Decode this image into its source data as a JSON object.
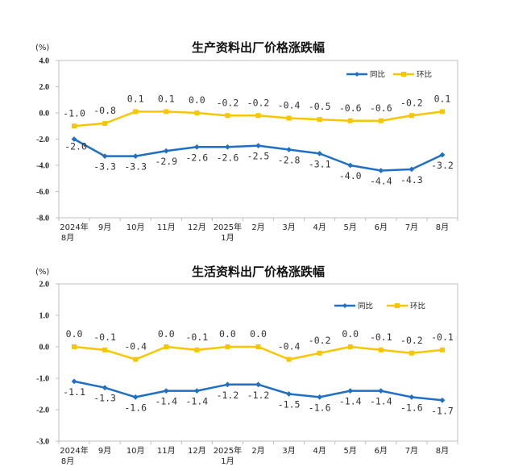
{
  "colors": {
    "yoy": "#1f6fc5",
    "mom": "#f7c600",
    "axis": "#bfbfbf"
  },
  "chart_data": [
    {
      "type": "line",
      "title": "生产资料出厂价格涨跌幅",
      "unit": "(%)",
      "ylim": [
        -8.0,
        4.0
      ],
      "yticks": [
        "4.0",
        "2.0",
        "0.0",
        "-2.0",
        "-4.0",
        "-6.0",
        "-8.0"
      ],
      "ytick_values": [
        4,
        2,
        0,
        -2,
        -4,
        -6,
        -8
      ],
      "categories": [
        [
          "2024年",
          "8月"
        ],
        [
          "9月"
        ],
        [
          "10月"
        ],
        [
          "11月"
        ],
        [
          "12月"
        ],
        [
          "2025年",
          "1月"
        ],
        [
          "2月"
        ],
        [
          "3月"
        ],
        [
          "4月"
        ],
        [
          "5月"
        ],
        [
          "6月"
        ],
        [
          "7月"
        ],
        [
          "8月"
        ]
      ],
      "legend_position": "top-right",
      "series": [
        {
          "name": "同比",
          "values": [
            -2.0,
            -3.3,
            -3.3,
            -2.9,
            -2.6,
            -2.6,
            -2.5,
            -2.8,
            -3.1,
            -4.0,
            -4.4,
            -4.3,
            -3.2
          ],
          "labels": [
            "-2.0",
            "-3.3",
            "-3.3",
            "-2.9",
            "-2.6",
            "-2.6",
            "-2.5",
            "-2.8",
            "-3.1",
            "-4.0",
            "-4.4",
            "-4.3",
            "-3.2"
          ]
        },
        {
          "name": "环比",
          "values": [
            -1.0,
            -0.8,
            0.1,
            0.1,
            0.0,
            -0.2,
            -0.2,
            -0.4,
            -0.5,
            -0.6,
            -0.6,
            -0.2,
            0.1
          ],
          "labels": [
            "-1.0",
            "-0.8",
            "0.1",
            "0.1",
            "0.0",
            "-0.2",
            "-0.2",
            "-0.4",
            "-0.5",
            "-0.6",
            "-0.6",
            "-0.2",
            "0.1"
          ]
        }
      ]
    },
    {
      "type": "line",
      "title": "生活资料出厂价格涨跌幅",
      "unit": "(%)",
      "ylim": [
        -3.0,
        2.0
      ],
      "yticks": [
        "2.0",
        "1.0",
        "0.0",
        "-1.0",
        "-2.0",
        "-3.0"
      ],
      "ytick_values": [
        2,
        1,
        0,
        -1,
        -2,
        -3
      ],
      "categories": [
        [
          "2024年",
          "8月"
        ],
        [
          "9月"
        ],
        [
          "10月"
        ],
        [
          "11月"
        ],
        [
          "12月"
        ],
        [
          "2025年",
          "1月"
        ],
        [
          "2月"
        ],
        [
          "3月"
        ],
        [
          "4月"
        ],
        [
          "5月"
        ],
        [
          "6月"
        ],
        [
          "7月"
        ],
        [
          "8月"
        ]
      ],
      "legend_position": "top-right",
      "series": [
        {
          "name": "同比",
          "values": [
            -1.1,
            -1.3,
            -1.6,
            -1.4,
            -1.4,
            -1.2,
            -1.2,
            -1.5,
            -1.6,
            -1.4,
            -1.4,
            -1.6,
            -1.7
          ],
          "labels": [
            "-1.1",
            "-1.3",
            "-1.6",
            "-1.4",
            "-1.4",
            "-1.2",
            "-1.2",
            "-1.5",
            "-1.6",
            "-1.4",
            "-1.4",
            "-1.6",
            "-1.7"
          ]
        },
        {
          "name": "环比",
          "values": [
            0.0,
            -0.1,
            -0.4,
            0.0,
            -0.1,
            0.0,
            0.0,
            -0.4,
            -0.2,
            0.0,
            -0.1,
            -0.2,
            -0.1
          ],
          "labels": [
            "0.0",
            "-0.1",
            "-0.4",
            "0.0",
            "-0.1",
            "0.0",
            "0.0",
            "-0.4",
            "-0.2",
            "0.0",
            "-0.1",
            "-0.2",
            "-0.1"
          ]
        }
      ]
    }
  ]
}
